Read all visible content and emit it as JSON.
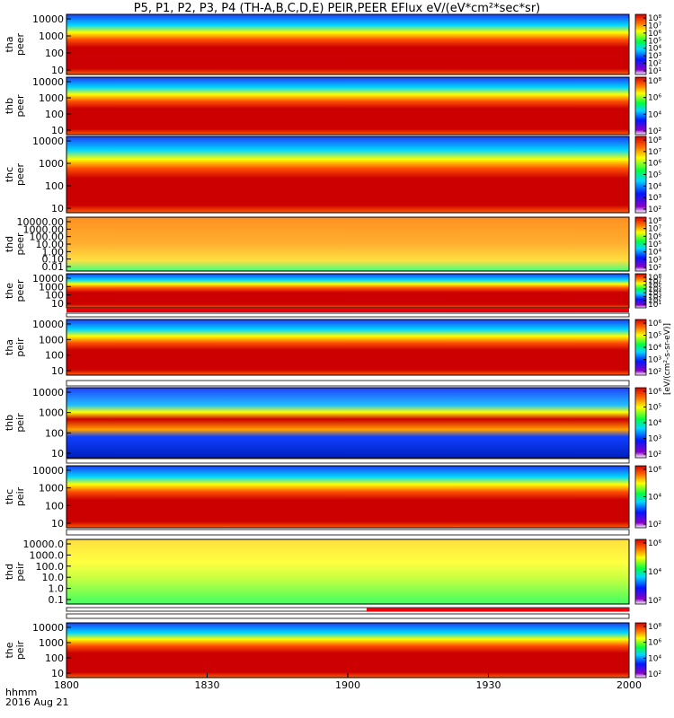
{
  "title": "P5, P1, P2, P3, P4 (TH-A,B,C,D,E) PEIR,PEER EFlux eV/(eV*cm²*sec*sr)",
  "x_label_line1": "hhmm",
  "x_label_line2": "2016 Aug 21",
  "colorbar_unit": "[eV/(cm²-s-sr-eV)]",
  "chart_data": {
    "type": "heatmap",
    "x_ticks": [
      "1800",
      "1830",
      "1900",
      "1930",
      "2000"
    ],
    "x_range": [
      1800,
      2000
    ],
    "panels": [
      {
        "id": "tha_peer",
        "line1": "tha",
        "line2": "peer",
        "ticks": [
          "10000",
          "1000",
          "100",
          "10"
        ],
        "ylim": [
          10,
          10000
        ],
        "cb_ticks": [
          "10⁸",
          "10⁷",
          "10⁶",
          "10⁵",
          "10⁴",
          "10³",
          "10²",
          "10¹"
        ]
      },
      {
        "id": "thb_peer",
        "line1": "thb",
        "line2": "peer",
        "ticks": [
          "10000",
          "1000",
          "100",
          "10"
        ],
        "ylim": [
          10,
          10000
        ],
        "cb_ticks": [
          "10⁸",
          "10⁶",
          "10⁴",
          "10²"
        ]
      },
      {
        "id": "thc_peer",
        "line1": "thc",
        "line2": "peer",
        "ticks": [
          "10000",
          "1000",
          "100",
          "10"
        ],
        "ylim": [
          10,
          10000
        ],
        "cb_ticks": [
          "10⁸",
          "10⁷",
          "10⁶",
          "10⁵",
          "10⁴",
          "10³",
          "10²"
        ]
      },
      {
        "id": "thd_peer",
        "line1": "thd",
        "line2": "peer",
        "ticks": [
          "10000.00",
          "1000.00",
          "100.00",
          "10.00",
          "1.00",
          "0.10",
          "0.01"
        ],
        "ylim": [
          0.01,
          10000
        ],
        "cb_ticks": [
          "10⁸",
          "10⁷",
          "10⁶",
          "10⁵",
          "10⁴",
          "10³",
          "10²"
        ]
      },
      {
        "id": "the_peer",
        "line1": "the",
        "line2": "peer",
        "ticks": [
          "10000",
          "1000",
          "100",
          "10"
        ],
        "ylim": [
          10,
          10000
        ],
        "cb_ticks": [
          "10⁸",
          "10⁷",
          "10⁶",
          "10⁵",
          "10⁴",
          "10³",
          "10²",
          "10¹"
        ]
      },
      {
        "id": "tha_peir",
        "line1": "tha",
        "line2": "peir",
        "ticks": [
          "10000",
          "1000",
          "100",
          "10"
        ],
        "ylim": [
          10,
          10000
        ],
        "cb_ticks": [
          "10⁶",
          "10⁵",
          "10⁴",
          "10³",
          "10²"
        ]
      },
      {
        "id": "thb_peir",
        "line1": "thb",
        "line2": "peir",
        "ticks": [
          "10000",
          "1000",
          "100",
          "10"
        ],
        "ylim": [
          10,
          10000
        ],
        "cb_ticks": [
          "10⁶",
          "10⁵",
          "10⁴",
          "10³",
          "10²"
        ]
      },
      {
        "id": "thc_peir",
        "line1": "thc",
        "line2": "peir",
        "ticks": [
          "10000",
          "1000",
          "100",
          "10"
        ],
        "ylim": [
          10,
          10000
        ],
        "cb_ticks": [
          "10⁶",
          "10⁴",
          "10²"
        ]
      },
      {
        "id": "thd_peir",
        "line1": "thd",
        "line2": "peir",
        "ticks": [
          "10000.0",
          "1000.0",
          "100.0",
          "10.0",
          "1.0",
          "0.1"
        ],
        "ylim": [
          0.1,
          10000
        ],
        "cb_ticks": [
          "10⁶",
          "10⁴",
          "10²"
        ]
      },
      {
        "id": "the_peir",
        "line1": "the",
        "line2": "peir",
        "ticks": [
          "10000",
          "1000",
          "100",
          "10"
        ],
        "ylim": [
          10,
          10000
        ],
        "cb_ticks": [
          "10⁸",
          "10⁶",
          "10⁴",
          "10²"
        ]
      }
    ]
  }
}
